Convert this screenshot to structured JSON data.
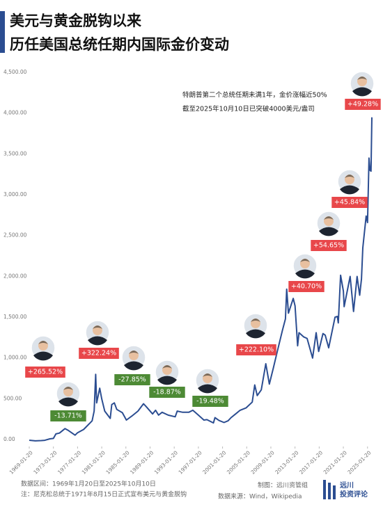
{
  "chart_data": {
    "type": "line",
    "title": [
      "美元与黄金脱钩以来",
      "历任美国总统任期内国际金价变动"
    ],
    "annotation": [
      "特朗普第二个总统任期未满1年，金价涨幅近50%",
      "截至2025年10月10日已突破4000美元/盎司"
    ],
    "color": "#2b4d91",
    "x": [
      "1969-01-20",
      "1970-01-20",
      "1971-01-20",
      "1971-08-15",
      "1972-06-20",
      "1973-01-20",
      "1973-06-20",
      "1974-01-20",
      "1974-12-20",
      "1975-06-20",
      "1976-08-20",
      "1977-01-20",
      "1978-01-20",
      "1978-10-20",
      "1979-06-20",
      "1979-10-20",
      "1980-01-21",
      "1980-03-20",
      "1980-09-20",
      "1981-01-20",
      "1981-07-20",
      "1982-06-20",
      "1982-09-20",
      "1983-02-20",
      "1983-07-20",
      "1984-06-20",
      "1985-02-20",
      "1986-01-20",
      "1987-01-20",
      "1987-12-20",
      "1988-06-20",
      "1989-06-20",
      "1989-12-20",
      "1990-06-20",
      "1991-01-20",
      "1992-01-20",
      "1993-03-20",
      "1993-07-20",
      "1994-06-20",
      "1995-06-20",
      "1996-02-20",
      "1997-01-20",
      "1997-12-20",
      "1998-06-20",
      "1999-07-20",
      "1999-10-20",
      "2000-06-20",
      "2001-04-20",
      "2001-12-20",
      "2002-06-20",
      "2003-02-20",
      "2003-12-20",
      "2004-12-20",
      "2005-12-20",
      "2006-05-20",
      "2006-10-20",
      "2007-06-20",
      "2008-03-20",
      "2008-10-20",
      "2009-06-20",
      "2010-01-20",
      "2010-12-20",
      "2011-06-20",
      "2011-09-05",
      "2011-12-20",
      "2012-10-05",
      "2013-01-20",
      "2013-06-28",
      "2013-09-20",
      "2014-06-20",
      "2015-01-20",
      "2015-12-17",
      "2016-07-20",
      "2016-12-20",
      "2017-09-08",
      "2018-01-20",
      "2018-08-16",
      "2019-09-04",
      "2020-01-20",
      "2020-03-19",
      "2020-08-06",
      "2021-01-20",
      "2021-03-08",
      "2022-03-08",
      "2022-09-28",
      "2023-05-03",
      "2023-10-05",
      "2024-01-20",
      "2024-04-12",
      "2024-10-30",
      "2025-01-20",
      "2025-04-21",
      "2025-06-20",
      "2025-08-20",
      "2025-10-10"
    ],
    "values": [
      43,
      35,
      38,
      42,
      60,
      65,
      120,
      130,
      185,
      165,
      105,
      135,
      175,
      230,
      280,
      400,
      850,
      500,
      680,
      550,
      400,
      310,
      480,
      500,
      420,
      380,
      290,
      340,
      400,
      490,
      450,
      365,
      410,
      350,
      385,
      350,
      330,
      400,
      385,
      385,
      410,
      350,
      290,
      295,
      255,
      320,
      285,
      260,
      280,
      320,
      360,
      410,
      440,
      510,
      720,
      590,
      660,
      980,
      730,
      930,
      1110,
      1390,
      1530,
      1895,
      1600,
      1780,
      1690,
      1200,
      1360,
      1310,
      1290,
      1050,
      1360,
      1130,
      1350,
      1330,
      1175,
      1550,
      1560,
      1480,
      2065,
      1870,
      1680,
      2050,
      1620,
      2050,
      1820,
      2020,
      2400,
      2790,
      2710,
      3500,
      3350,
      3340,
      4000
    ],
    "xlim": [
      "1969-01-20",
      "2025-10-10"
    ],
    "xticks": [
      "1969-01-20",
      "1973-01-20",
      "1977-01-20",
      "1981-01-20",
      "1985-01-20",
      "1989-01-20",
      "1993-01-20",
      "1997-01-20",
      "2001-01-20",
      "2005-01-20",
      "2009-01-20",
      "2013-01-20",
      "2017-01-20",
      "2021-01-20",
      "2025-01-20"
    ],
    "ylim": [
      0,
      4500
    ],
    "yticks": [
      {
        "value": 0,
        "label": "0.00"
      },
      {
        "value": 500,
        "label": "500.00"
      },
      {
        "value": 1000,
        "label": "1,000.00"
      },
      {
        "value": 1500,
        "label": "1,500.00"
      },
      {
        "value": 2000,
        "label": "2,000.00"
      },
      {
        "value": 2500,
        "label": "2,500.00"
      },
      {
        "value": 3000,
        "label": "3,000.00"
      },
      {
        "value": 3500,
        "label": "3,500.00"
      },
      {
        "value": 4000,
        "label": "4,000.00"
      },
      {
        "value": 4500,
        "label": "4,500.00"
      }
    ],
    "grid": false,
    "term_changes": {
      "values": [
        265.52,
        -13.71,
        322.24,
        -27.85,
        -18.87,
        -19.48,
        222.1,
        40.7,
        54.65,
        45.84,
        49.28
      ],
      "value_labels": [
        "+265.52%",
        "-13.71%",
        "+322.24%",
        "-27.85%",
        "-18.87%",
        "-19.48%",
        "+222.10%",
        "+40.70%",
        "+54.65%",
        "+45.84%",
        "+49.28%"
      ],
      "colors": {
        "up": "#e8474a",
        "down": "#4d8a35"
      }
    }
  },
  "footer": {
    "range": "数据区间：1969年1月20日至2025年10月10日",
    "note": "注：尼克松总统于1971年8月15日正式宣布美元与黄金脱钩",
    "author": "制图：远川资管组",
    "source": "数据来源：Wind，Wikipedia"
  },
  "logo": {
    "line1": "远川",
    "line2": "投资评论"
  }
}
